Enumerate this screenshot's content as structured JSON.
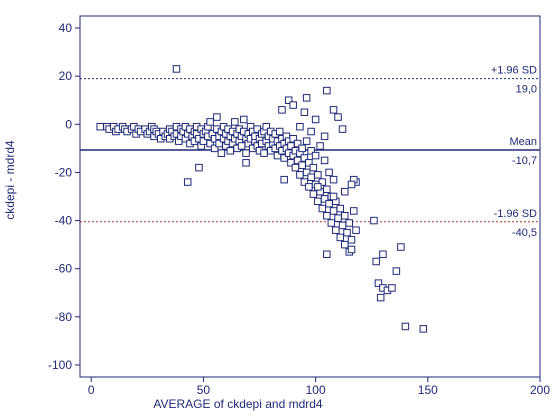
{
  "chart_data": {
    "type": "scatter",
    "title": "",
    "xlabel": "AVERAGE of ckdepi and mdrd4",
    "ylabel": "ckdepi - mdrd4",
    "xlim": [
      -5,
      200
    ],
    "ylim": [
      -105,
      45
    ],
    "x_ticks": [
      0,
      50,
      100,
      150,
      200
    ],
    "y_ticks": [
      40,
      20,
      0,
      -20,
      -40,
      -60,
      -80,
      -100
    ],
    "grid": false,
    "colors": {
      "axis": "#1e2a78",
      "points": "#1e2a78",
      "mean_line": "#1e2a78",
      "sd_upper_line": "#1e2a78",
      "sd_lower_line": "#b03030"
    },
    "reference_lines": [
      {
        "key": "sd_upper",
        "y": 19.0,
        "label": "+1.96 SD",
        "value_label": "19,0",
        "style": "dotted"
      },
      {
        "key": "mean",
        "y": -10.7,
        "label": "Mean",
        "value_label": "-10,7",
        "style": "solid"
      },
      {
        "key": "sd_lower",
        "y": -40.5,
        "label": "-1.96 SD",
        "value_label": "-40,5",
        "style": "dotted"
      }
    ],
    "points": [
      [
        4,
        -1
      ],
      [
        7,
        -1
      ],
      [
        8,
        -2
      ],
      [
        10,
        -1
      ],
      [
        11,
        -3
      ],
      [
        12,
        -2
      ],
      [
        14,
        -1
      ],
      [
        15,
        -2
      ],
      [
        16,
        -3
      ],
      [
        18,
        -2
      ],
      [
        19,
        -1
      ],
      [
        20,
        -4
      ],
      [
        21,
        -2
      ],
      [
        22,
        -3
      ],
      [
        24,
        -2
      ],
      [
        25,
        -4
      ],
      [
        26,
        -3
      ],
      [
        27,
        -1
      ],
      [
        28,
        -5
      ],
      [
        28,
        -2
      ],
      [
        29,
        -3
      ],
      [
        30,
        -4
      ],
      [
        31,
        -6
      ],
      [
        32,
        -3
      ],
      [
        33,
        -5
      ],
      [
        34,
        -4
      ],
      [
        35,
        -2
      ],
      [
        35,
        -6
      ],
      [
        36,
        -3
      ],
      [
        37,
        -5
      ],
      [
        38,
        -1
      ],
      [
        38,
        -4
      ],
      [
        39,
        -7
      ],
      [
        40,
        -2
      ],
      [
        40,
        -5
      ],
      [
        41,
        -3
      ],
      [
        42,
        -6
      ],
      [
        42,
        -1
      ],
      [
        43,
        -4
      ],
      [
        44,
        -8
      ],
      [
        44,
        -2
      ],
      [
        45,
        -5
      ],
      [
        46,
        -3
      ],
      [
        46,
        -7
      ],
      [
        47,
        -1
      ],
      [
        47,
        -4
      ],
      [
        48,
        -6
      ],
      [
        49,
        -2
      ],
      [
        49,
        -9
      ],
      [
        50,
        -4
      ],
      [
        50,
        -7
      ],
      [
        51,
        -3
      ],
      [
        52,
        -5
      ],
      [
        52,
        -1
      ],
      [
        53,
        -8
      ],
      [
        53,
        1
      ],
      [
        54,
        -4
      ],
      [
        55,
        -6
      ],
      [
        55,
        -10
      ],
      [
        56,
        -2
      ],
      [
        56,
        3
      ],
      [
        57,
        -5
      ],
      [
        57,
        -8
      ],
      [
        58,
        -3
      ],
      [
        58,
        -12
      ],
      [
        59,
        -6
      ],
      [
        59,
        -1
      ],
      [
        60,
        -4
      ],
      [
        60,
        -9
      ],
      [
        61,
        -7
      ],
      [
        61,
        -2
      ],
      [
        62,
        -5
      ],
      [
        62,
        -11
      ],
      [
        63,
        -3
      ],
      [
        63,
        -8
      ],
      [
        64,
        -6
      ],
      [
        64,
        1
      ],
      [
        65,
        -4
      ],
      [
        65,
        -10
      ],
      [
        66,
        -7
      ],
      [
        66,
        -2
      ],
      [
        67,
        -5
      ],
      [
        67,
        -9
      ],
      [
        68,
        -3
      ],
      [
        68,
        2
      ],
      [
        69,
        -6
      ],
      [
        69,
        -12
      ],
      [
        70,
        -4
      ],
      [
        70,
        -8
      ],
      [
        71,
        -1
      ],
      [
        71,
        -6
      ],
      [
        72,
        -10
      ],
      [
        72,
        -3
      ],
      [
        73,
        -7
      ],
      [
        73,
        -5
      ],
      [
        74,
        -9
      ],
      [
        74,
        -2
      ],
      [
        75,
        -11
      ],
      [
        75,
        -6
      ],
      [
        76,
        -4
      ],
      [
        76,
        -8
      ],
      [
        77,
        -3
      ],
      [
        77,
        -12
      ],
      [
        78,
        -7
      ],
      [
        78,
        -1
      ],
      [
        79,
        -9
      ],
      [
        79,
        -5
      ],
      [
        80,
        -11
      ],
      [
        80,
        -3
      ],
      [
        81,
        -8
      ],
      [
        81,
        -6
      ],
      [
        82,
        -10
      ],
      [
        82,
        -4
      ],
      [
        83,
        -7
      ],
      [
        83,
        -13
      ],
      [
        84,
        -9
      ],
      [
        84,
        -3
      ],
      [
        85,
        -6
      ],
      [
        85,
        -11
      ],
      [
        86,
        -8
      ],
      [
        86,
        -14
      ],
      [
        87,
        -5
      ],
      [
        87,
        -10
      ],
      [
        88,
        -12
      ],
      [
        88,
        -7
      ],
      [
        89,
        -16
      ],
      [
        89,
        -9
      ],
      [
        90,
        -13
      ],
      [
        90,
        -6
      ],
      [
        91,
        -18
      ],
      [
        91,
        -11
      ],
      [
        92,
        -15
      ],
      [
        92,
        -8
      ],
      [
        93,
        -21
      ],
      [
        93,
        -12
      ],
      [
        94,
        -17
      ],
      [
        94,
        -10
      ],
      [
        95,
        -24
      ],
      [
        95,
        -14
      ],
      [
        96,
        -20
      ],
      [
        96,
        -7
      ],
      [
        97,
        -26
      ],
      [
        97,
        -16
      ],
      [
        98,
        -22
      ],
      [
        98,
        -11
      ],
      [
        99,
        -29
      ],
      [
        99,
        -18
      ],
      [
        100,
        -25
      ],
      [
        100,
        -13
      ],
      [
        101,
        -32
      ],
      [
        101,
        -21
      ],
      [
        102,
        -28
      ],
      [
        102,
        -9
      ],
      [
        103,
        -35
      ],
      [
        103,
        -24
      ],
      [
        104,
        -31
      ],
      [
        104,
        -15
      ],
      [
        105,
        -38
      ],
      [
        105,
        -27
      ],
      [
        106,
        -33
      ],
      [
        106,
        -20
      ],
      [
        107,
        -41
      ],
      [
        107,
        -30
      ],
      [
        108,
        -36
      ],
      [
        108,
        -23
      ],
      [
        109,
        -44
      ],
      [
        109,
        -32
      ],
      [
        110,
        -39
      ],
      [
        111,
        -47
      ],
      [
        111,
        -35
      ],
      [
        112,
        -42
      ],
      [
        113,
        -50
      ],
      [
        113,
        -38
      ],
      [
        114,
        -45
      ],
      [
        115,
        -53
      ],
      [
        115,
        -41
      ],
      [
        116,
        -48
      ],
      [
        117,
        -36
      ],
      [
        118,
        -24
      ],
      [
        118,
        -44
      ],
      [
        38,
        23
      ],
      [
        105,
        14
      ],
      [
        96,
        11
      ],
      [
        88,
        10
      ],
      [
        108,
        6
      ],
      [
        90,
        8
      ],
      [
        95,
        5
      ],
      [
        110,
        3
      ],
      [
        85,
        6
      ],
      [
        100,
        2
      ],
      [
        112,
        -2
      ],
      [
        104,
        -5
      ],
      [
        98,
        -3
      ],
      [
        93,
        -1
      ],
      [
        43,
        -24
      ],
      [
        48,
        -18
      ],
      [
        69,
        -16
      ],
      [
        86,
        -23
      ],
      [
        101,
        -26
      ],
      [
        108,
        -30
      ],
      [
        113,
        -28
      ],
      [
        117,
        -23
      ],
      [
        116,
        -25
      ],
      [
        105,
        -54
      ],
      [
        116,
        -52
      ],
      [
        126,
        -40
      ],
      [
        127,
        -57
      ],
      [
        128,
        -66
      ],
      [
        129,
        -72
      ],
      [
        130,
        -54
      ],
      [
        130,
        -68
      ],
      [
        132,
        -69
      ],
      [
        134,
        -68
      ],
      [
        136,
        -61
      ],
      [
        138,
        -51
      ],
      [
        140,
        -84
      ],
      [
        148,
        -85
      ]
    ]
  }
}
